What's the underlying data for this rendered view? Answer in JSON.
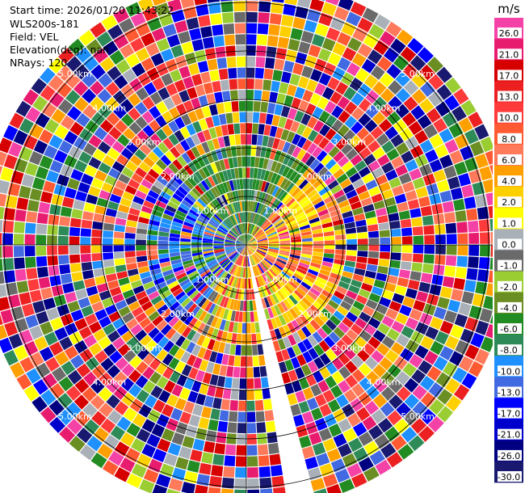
{
  "header": {
    "start_time": "Start time: 2026/01/20 11:43:22",
    "instrument": "WLS200s-181",
    "field": "Field: VEL",
    "elevation": "Elevation(deg): nan",
    "nrays": "NRays: 120"
  },
  "chart_data": {
    "type": "heatmap",
    "projection": "polar",
    "field": "VEL",
    "n_rays": 120,
    "max_range_km": 5.5,
    "range_rings_km": [
      1,
      2,
      3,
      4,
      5
    ],
    "ring_labels": [
      "1.00km",
      "2.00km",
      "3.00km",
      "4.00km",
      "5.00km"
    ],
    "gap_azimuth_deg": [
      166,
      171
    ],
    "colorbar": {
      "title": "m/s",
      "ticks": [
        "26.0",
        "21.0",
        "17.0",
        "13.0",
        "10.0",
        "8.0",
        "6.0",
        "4.0",
        "2.0",
        "1.0",
        "0.0",
        "-1.0",
        "-2.0",
        "-4.0",
        "-6.0",
        "-8.0",
        "-10.0",
        "-13.0",
        "-17.0",
        "-21.0",
        "-26.0",
        "-30.0"
      ],
      "colors": [
        "#f542a7",
        "#e81c6f",
        "#d70000",
        "#ec2020",
        "#ff3a3a",
        "#ff5a32",
        "#ff7a5a",
        "#ffa000",
        "#ffd000",
        "#ffff00",
        "#aab0b8",
        "#6a6a6a",
        "#9acd32",
        "#6b8e23",
        "#228b22",
        "#2e8b57",
        "#1e90ff",
        "#4169e1",
        "#0000ff",
        "#0000cd",
        "#000080",
        "#191970"
      ]
    },
    "center_colors": {
      "west": [
        "#0000ff",
        "#1e90ff",
        "#4169e1",
        "#9acd32",
        "#228b22"
      ],
      "east": [
        "#ff7a5a",
        "#ff5a32",
        "#ffa000",
        "#ffd000",
        "#ffff00"
      ],
      "north": [
        "#228b22",
        "#2e8b57",
        "#6b8e23"
      ],
      "south": [
        "#ffa000",
        "#ff3a3a",
        "#ffd000",
        "#9acd32"
      ]
    }
  }
}
